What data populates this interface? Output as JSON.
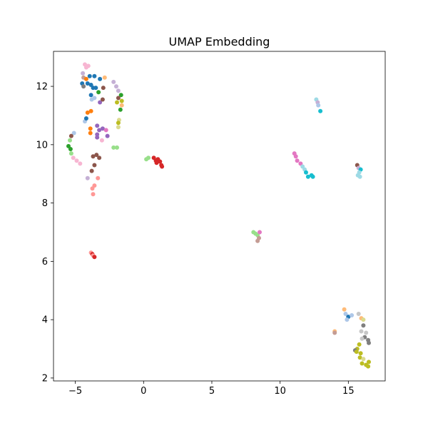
{
  "chart_data": {
    "type": "scatter",
    "title": "UMAP Embedding",
    "xlabel": "",
    "ylabel": "",
    "xlim": [
      -6.6,
      17.7
    ],
    "ylim": [
      1.9,
      13.2
    ],
    "xticks": [
      -5,
      0,
      5,
      10,
      15
    ],
    "yticks": [
      2,
      4,
      6,
      8,
      10,
      12
    ],
    "grid": false,
    "legend": "none",
    "palette": {
      "blue": "#1f77b4",
      "light_blue": "#aec7e8",
      "orange": "#ff7f0e",
      "light_orange": "#ffbb78",
      "green": "#2ca02c",
      "light_green": "#98df8a",
      "red": "#d62728",
      "light_red": "#ff9896",
      "purple": "#9467bd",
      "light_purple": "#c5b0d5",
      "brown": "#8c564b",
      "light_brown": "#c49c94",
      "pink": "#e377c2",
      "light_pink": "#f7b6d2",
      "gray": "#7f7f7f",
      "light_gray": "#c7c7c7",
      "olive": "#bcbd22",
      "light_olive": "#dbdb8d",
      "cyan": "#17becf",
      "light_cyan": "#9edae5"
    },
    "points": [
      {
        "x": -4.3,
        "y": 12.75,
        "c": "light_pink"
      },
      {
        "x": -4.2,
        "y": 12.65,
        "c": "light_pink"
      },
      {
        "x": -4.05,
        "y": 12.7,
        "c": "light_pink"
      },
      {
        "x": -4.45,
        "y": 12.45,
        "c": "light_purple"
      },
      {
        "x": -4.4,
        "y": 12.3,
        "c": "light_brown"
      },
      {
        "x": -4.2,
        "y": 12.25,
        "c": "orange"
      },
      {
        "x": -3.95,
        "y": 12.35,
        "c": "blue"
      },
      {
        "x": -3.6,
        "y": 12.35,
        "c": "blue"
      },
      {
        "x": -3.2,
        "y": 12.25,
        "c": "blue"
      },
      {
        "x": -2.85,
        "y": 12.3,
        "c": "light_orange"
      },
      {
        "x": -4.5,
        "y": 12.1,
        "c": "blue"
      },
      {
        "x": -4.4,
        "y": 12.0,
        "c": "gray"
      },
      {
        "x": -4.1,
        "y": 12.1,
        "c": "blue"
      },
      {
        "x": -3.85,
        "y": 12.05,
        "c": "blue"
      },
      {
        "x": -3.7,
        "y": 11.95,
        "c": "blue"
      },
      {
        "x": -3.5,
        "y": 11.95,
        "c": "blue"
      },
      {
        "x": -3.3,
        "y": 11.8,
        "c": "green"
      },
      {
        "x": -2.95,
        "y": 11.95,
        "c": "brown"
      },
      {
        "x": -3.85,
        "y": 11.7,
        "c": "blue"
      },
      {
        "x": -3.6,
        "y": 11.6,
        "c": "light_blue"
      },
      {
        "x": -3.8,
        "y": 11.55,
        "c": "light_blue"
      },
      {
        "x": -3.2,
        "y": 11.45,
        "c": "purple"
      },
      {
        "x": -3.0,
        "y": 11.55,
        "c": "brown"
      },
      {
        "x": -4.1,
        "y": 11.1,
        "c": "orange"
      },
      {
        "x": -3.85,
        "y": 11.15,
        "c": "orange"
      },
      {
        "x": -4.3,
        "y": 10.8,
        "c": "light_blue"
      },
      {
        "x": -4.2,
        "y": 10.9,
        "c": "blue"
      },
      {
        "x": -3.9,
        "y": 10.55,
        "c": "orange"
      },
      {
        "x": -3.9,
        "y": 10.4,
        "c": "orange"
      },
      {
        "x": -3.4,
        "y": 10.65,
        "c": "purple"
      },
      {
        "x": -3.25,
        "y": 10.5,
        "c": "purple"
      },
      {
        "x": -3.0,
        "y": 10.55,
        "c": "purple"
      },
      {
        "x": -2.75,
        "y": 10.5,
        "c": "pink"
      },
      {
        "x": -3.4,
        "y": 10.35,
        "c": "purple"
      },
      {
        "x": -3.4,
        "y": 10.25,
        "c": "purple"
      },
      {
        "x": -2.65,
        "y": 10.3,
        "c": "purple"
      },
      {
        "x": -3.05,
        "y": 10.15,
        "c": "light_pink"
      },
      {
        "x": -2.2,
        "y": 12.15,
        "c": "light_purple"
      },
      {
        "x": -2.0,
        "y": 12.0,
        "c": "light_purple"
      },
      {
        "x": -1.85,
        "y": 11.85,
        "c": "light_purple"
      },
      {
        "x": -1.65,
        "y": 11.7,
        "c": "green"
      },
      {
        "x": -1.85,
        "y": 11.6,
        "c": "brown"
      },
      {
        "x": -1.6,
        "y": 11.5,
        "c": "olive"
      },
      {
        "x": -1.95,
        "y": 11.45,
        "c": "olive"
      },
      {
        "x": -1.6,
        "y": 11.35,
        "c": "light_orange"
      },
      {
        "x": -1.7,
        "y": 11.2,
        "c": "green"
      },
      {
        "x": -1.8,
        "y": 10.85,
        "c": "light_olive"
      },
      {
        "x": -1.85,
        "y": 10.75,
        "c": "olive"
      },
      {
        "x": -1.85,
        "y": 10.6,
        "c": "light_olive"
      },
      {
        "x": -5.1,
        "y": 10.4,
        "c": "light_blue"
      },
      {
        "x": -5.3,
        "y": 10.3,
        "c": "brown"
      },
      {
        "x": -5.4,
        "y": 10.15,
        "c": "light_green"
      },
      {
        "x": -5.5,
        "y": 9.95,
        "c": "green"
      },
      {
        "x": -5.35,
        "y": 9.85,
        "c": "green"
      },
      {
        "x": -5.3,
        "y": 9.7,
        "c": "light_green"
      },
      {
        "x": -5.15,
        "y": 9.55,
        "c": "light_pink"
      },
      {
        "x": -4.9,
        "y": 9.45,
        "c": "light_pink"
      },
      {
        "x": -4.65,
        "y": 9.35,
        "c": "light_pink"
      },
      {
        "x": -2.2,
        "y": 9.9,
        "c": "light_green"
      },
      {
        "x": -1.95,
        "y": 9.9,
        "c": "light_green"
      },
      {
        "x": -3.7,
        "y": 9.6,
        "c": "brown"
      },
      {
        "x": -3.45,
        "y": 9.65,
        "c": "brown"
      },
      {
        "x": -3.25,
        "y": 9.55,
        "c": "brown"
      },
      {
        "x": -3.6,
        "y": 9.3,
        "c": "brown"
      },
      {
        "x": -3.8,
        "y": 9.1,
        "c": "brown"
      },
      {
        "x": -4.1,
        "y": 8.85,
        "c": "light_purple"
      },
      {
        "x": -3.35,
        "y": 8.85,
        "c": "light_red"
      },
      {
        "x": -3.6,
        "y": 8.6,
        "c": "light_red"
      },
      {
        "x": -3.75,
        "y": 8.5,
        "c": "light_red"
      },
      {
        "x": -3.7,
        "y": 8.3,
        "c": "light_red"
      },
      {
        "x": 0.2,
        "y": 9.5,
        "c": "light_green"
      },
      {
        "x": 0.35,
        "y": 9.55,
        "c": "light_green"
      },
      {
        "x": 0.75,
        "y": 9.55,
        "c": "red"
      },
      {
        "x": 0.9,
        "y": 9.45,
        "c": "red"
      },
      {
        "x": 1.05,
        "y": 9.5,
        "c": "red"
      },
      {
        "x": 0.95,
        "y": 9.38,
        "c": "red"
      },
      {
        "x": 1.2,
        "y": 9.42,
        "c": "red"
      },
      {
        "x": 1.3,
        "y": 9.3,
        "c": "red"
      },
      {
        "x": 1.35,
        "y": 9.25,
        "c": "red"
      },
      {
        "x": -3.85,
        "y": 6.3,
        "c": "light_red"
      },
      {
        "x": -3.75,
        "y": 6.25,
        "c": "red"
      },
      {
        "x": -3.7,
        "y": 6.2,
        "c": "light_red"
      },
      {
        "x": -3.6,
        "y": 6.15,
        "c": "red"
      },
      {
        "x": 12.65,
        "y": 11.55,
        "c": "light_cyan"
      },
      {
        "x": 12.75,
        "y": 11.45,
        "c": "light_purple"
      },
      {
        "x": 12.8,
        "y": 11.35,
        "c": "light_blue"
      },
      {
        "x": 12.95,
        "y": 11.15,
        "c": "cyan"
      },
      {
        "x": 11.05,
        "y": 9.7,
        "c": "pink"
      },
      {
        "x": 11.15,
        "y": 9.6,
        "c": "pink"
      },
      {
        "x": 11.25,
        "y": 9.45,
        "c": "pink"
      },
      {
        "x": 11.5,
        "y": 9.35,
        "c": "pink"
      },
      {
        "x": 11.65,
        "y": 9.25,
        "c": "light_cyan"
      },
      {
        "x": 11.8,
        "y": 9.15,
        "c": "light_cyan"
      },
      {
        "x": 11.9,
        "y": 9.05,
        "c": "cyan"
      },
      {
        "x": 12.05,
        "y": 8.9,
        "c": "cyan"
      },
      {
        "x": 12.3,
        "y": 8.95,
        "c": "cyan"
      },
      {
        "x": 12.4,
        "y": 8.9,
        "c": "cyan"
      },
      {
        "x": 15.65,
        "y": 9.3,
        "c": "brown"
      },
      {
        "x": 15.75,
        "y": 9.2,
        "c": "light_purple"
      },
      {
        "x": 15.9,
        "y": 9.15,
        "c": "cyan"
      },
      {
        "x": 15.8,
        "y": 9.05,
        "c": "light_cyan"
      },
      {
        "x": 15.7,
        "y": 8.95,
        "c": "light_cyan"
      },
      {
        "x": 15.85,
        "y": 8.9,
        "c": "light_cyan"
      },
      {
        "x": 8.05,
        "y": 7.0,
        "c": "light_green"
      },
      {
        "x": 8.2,
        "y": 6.95,
        "c": "light_green"
      },
      {
        "x": 8.35,
        "y": 6.9,
        "c": "light_green"
      },
      {
        "x": 8.5,
        "y": 7.0,
        "c": "pink"
      },
      {
        "x": 8.45,
        "y": 6.8,
        "c": "light_brown"
      },
      {
        "x": 8.35,
        "y": 6.7,
        "c": "light_brown"
      },
      {
        "x": 14.7,
        "y": 4.35,
        "c": "light_orange"
      },
      {
        "x": 14.8,
        "y": 4.2,
        "c": "light_blue"
      },
      {
        "x": 15.0,
        "y": 4.1,
        "c": "blue"
      },
      {
        "x": 15.25,
        "y": 4.15,
        "c": "light_blue"
      },
      {
        "x": 14.9,
        "y": 4.0,
        "c": "light_blue"
      },
      {
        "x": 15.75,
        "y": 4.2,
        "c": "light_gray"
      },
      {
        "x": 15.95,
        "y": 4.05,
        "c": "light_orange"
      },
      {
        "x": 16.1,
        "y": 4.0,
        "c": "light_olive"
      },
      {
        "x": 16.1,
        "y": 3.8,
        "c": "gray"
      },
      {
        "x": 14.0,
        "y": 3.6,
        "c": "light_orange"
      },
      {
        "x": 14.0,
        "y": 3.55,
        "c": "light_brown"
      },
      {
        "x": 15.95,
        "y": 3.6,
        "c": "light_gray"
      },
      {
        "x": 16.3,
        "y": 3.55,
        "c": "light_gray"
      },
      {
        "x": 16.2,
        "y": 3.4,
        "c": "gray"
      },
      {
        "x": 16.0,
        "y": 3.35,
        "c": "light_gray"
      },
      {
        "x": 16.45,
        "y": 3.3,
        "c": "gray"
      },
      {
        "x": 16.5,
        "y": 3.2,
        "c": "gray"
      },
      {
        "x": 15.8,
        "y": 3.15,
        "c": "olive"
      },
      {
        "x": 15.65,
        "y": 3.0,
        "c": "olive"
      },
      {
        "x": 15.5,
        "y": 2.95,
        "c": "gray"
      },
      {
        "x": 15.6,
        "y": 2.9,
        "c": "olive"
      },
      {
        "x": 15.9,
        "y": 2.85,
        "c": "olive"
      },
      {
        "x": 15.85,
        "y": 2.7,
        "c": "olive"
      },
      {
        "x": 16.1,
        "y": 2.65,
        "c": "light_olive"
      },
      {
        "x": 16.0,
        "y": 2.5,
        "c": "olive"
      },
      {
        "x": 16.3,
        "y": 2.45,
        "c": "olive"
      },
      {
        "x": 16.5,
        "y": 2.55,
        "c": "olive"
      },
      {
        "x": 16.45,
        "y": 2.4,
        "c": "olive"
      }
    ]
  }
}
